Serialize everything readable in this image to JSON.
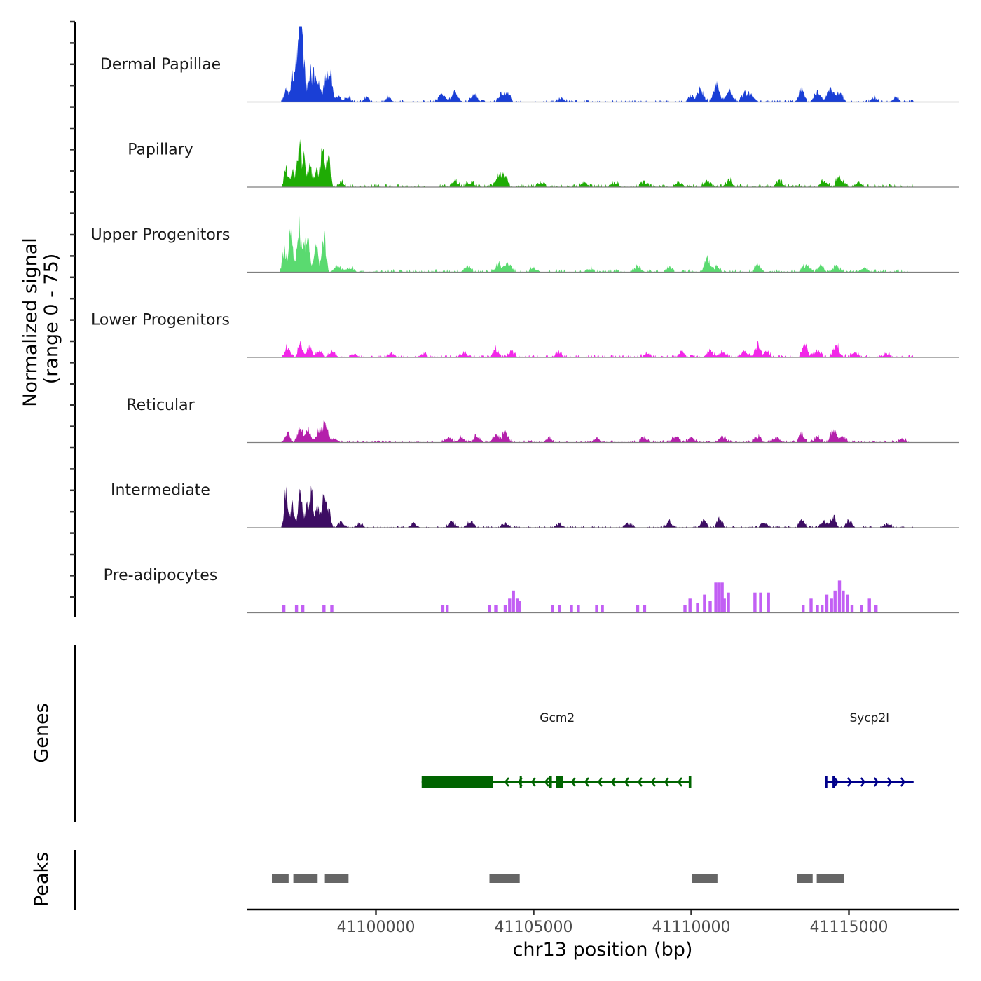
{
  "chart_data": {
    "type": "area",
    "y_axis_label_line1": "Normalized signal",
    "y_axis_label_line2": "(range 0 - 75)",
    "ylim": [
      0,
      75
    ],
    "xlabel": "chr13 position (bp)",
    "xlim": [
      41095900,
      41118500
    ],
    "x_ticks": [
      {
        "value": 41100000,
        "label": "41100000"
      },
      {
        "value": 41105000,
        "label": "41105000"
      },
      {
        "value": 41110000,
        "label": "41110000"
      },
      {
        "value": 41115000,
        "label": "41115000"
      }
    ],
    "tracks": [
      {
        "name": "Dermal Papillae",
        "color": "#1a3fd6",
        "style": "smooth",
        "range": [
          41096950,
          41117050
        ],
        "peaks": [
          [
            41097150,
            15,
            60
          ],
          [
            41097350,
            25,
            60
          ],
          [
            41097500,
            50,
            70
          ],
          [
            41097600,
            75,
            60
          ],
          [
            41097700,
            45,
            50
          ],
          [
            41097900,
            35,
            60
          ],
          [
            41098050,
            30,
            60
          ],
          [
            41098200,
            20,
            50
          ],
          [
            41098400,
            25,
            60
          ],
          [
            41098550,
            35,
            60
          ],
          [
            41098800,
            6,
            80
          ],
          [
            41099100,
            5,
            80
          ],
          [
            41099700,
            5,
            80
          ],
          [
            41100400,
            5,
            80
          ],
          [
            41102100,
            8,
            100
          ],
          [
            41102500,
            10,
            100
          ],
          [
            41103100,
            9,
            100
          ],
          [
            41104000,
            9,
            100
          ],
          [
            41104200,
            8,
            80
          ],
          [
            41105900,
            5,
            80
          ],
          [
            41110000,
            7,
            90
          ],
          [
            41110300,
            14,
            90
          ],
          [
            41110800,
            17,
            100
          ],
          [
            41111200,
            13,
            100
          ],
          [
            41111700,
            8,
            100
          ],
          [
            41111900,
            8,
            100
          ],
          [
            41113500,
            17,
            80
          ],
          [
            41114000,
            12,
            100
          ],
          [
            41114400,
            13,
            100
          ],
          [
            41114700,
            11,
            100
          ],
          [
            41115800,
            5,
            80
          ],
          [
            41116500,
            6,
            80
          ]
        ],
        "base_noise": 2.5
      },
      {
        "name": "Papillary",
        "color": "#1fac05",
        "style": "smooth",
        "range": [
          41096950,
          41117050
        ],
        "peaks": [
          [
            41097150,
            20,
            60
          ],
          [
            41097350,
            18,
            60
          ],
          [
            41097550,
            45,
            60
          ],
          [
            41097700,
            30,
            60
          ],
          [
            41097900,
            20,
            70
          ],
          [
            41098100,
            20,
            60
          ],
          [
            41098300,
            38,
            70
          ],
          [
            41098500,
            30,
            60
          ],
          [
            41098900,
            5,
            80
          ],
          [
            41102500,
            6,
            100
          ],
          [
            41103000,
            6,
            100
          ],
          [
            41103900,
            14,
            100
          ],
          [
            41104100,
            12,
            80
          ],
          [
            41105200,
            4,
            100
          ],
          [
            41106600,
            5,
            100
          ],
          [
            41107600,
            4,
            100
          ],
          [
            41108500,
            6,
            100
          ],
          [
            41109600,
            6,
            100
          ],
          [
            41110500,
            7,
            100
          ],
          [
            41111200,
            8,
            100
          ],
          [
            41112800,
            7,
            100
          ],
          [
            41114200,
            8,
            100
          ],
          [
            41114700,
            10,
            100
          ],
          [
            41115300,
            5,
            100
          ]
        ],
        "base_noise": 3.5
      },
      {
        "name": "Upper Progenitors",
        "color": "#5ada70",
        "style": "smooth",
        "range": [
          41096950,
          41117050
        ],
        "peaks": [
          [
            41097100,
            25,
            60
          ],
          [
            41097300,
            45,
            60
          ],
          [
            41097550,
            50,
            60
          ],
          [
            41097700,
            30,
            60
          ],
          [
            41097850,
            32,
            60
          ],
          [
            41098100,
            30,
            60
          ],
          [
            41098350,
            38,
            60
          ],
          [
            41098800,
            8,
            100
          ],
          [
            41099200,
            5,
            100
          ],
          [
            41102900,
            6,
            100
          ],
          [
            41103900,
            8,
            100
          ],
          [
            41104200,
            9,
            100
          ],
          [
            41105000,
            5,
            100
          ],
          [
            41106800,
            4,
            100
          ],
          [
            41108300,
            6,
            100
          ],
          [
            41109300,
            6,
            100
          ],
          [
            41110500,
            15,
            80
          ],
          [
            41110800,
            6,
            100
          ],
          [
            41112100,
            10,
            80
          ],
          [
            41113600,
            8,
            100
          ],
          [
            41114100,
            8,
            100
          ],
          [
            41114600,
            7,
            100
          ],
          [
            41115500,
            5,
            100
          ]
        ],
        "base_noise": 3.0
      },
      {
        "name": "Lower Progenitors",
        "color": "#f227e8",
        "style": "smooth",
        "range": [
          41097000,
          41117050
        ],
        "peaks": [
          [
            41097200,
            13,
            80
          ],
          [
            41097600,
            15,
            70
          ],
          [
            41097900,
            12,
            80
          ],
          [
            41098200,
            7,
            80
          ],
          [
            41098600,
            6,
            100
          ],
          [
            41099300,
            4,
            100
          ],
          [
            41100500,
            4,
            100
          ],
          [
            41101500,
            4,
            100
          ],
          [
            41102800,
            4,
            100
          ],
          [
            41103800,
            9,
            80
          ],
          [
            41104300,
            6,
            100
          ],
          [
            41105800,
            5,
            100
          ],
          [
            41108600,
            4,
            100
          ],
          [
            41109700,
            5,
            100
          ],
          [
            41110600,
            8,
            100
          ],
          [
            41111000,
            7,
            100
          ],
          [
            41111700,
            6,
            100
          ],
          [
            41112100,
            14,
            80
          ],
          [
            41112400,
            6,
            100
          ],
          [
            41113600,
            15,
            80
          ],
          [
            41114000,
            8,
            100
          ],
          [
            41114600,
            13,
            100
          ],
          [
            41115200,
            5,
            100
          ],
          [
            41116200,
            4,
            100
          ]
        ],
        "base_noise": 3.0
      },
      {
        "name": "Reticular",
        "color": "#b41fab",
        "style": "smooth",
        "range": [
          41097000,
          41117000
        ],
        "peaks": [
          [
            41097200,
            10,
            80
          ],
          [
            41097600,
            18,
            80
          ],
          [
            41097850,
            16,
            80
          ],
          [
            41098200,
            16,
            80
          ],
          [
            41098400,
            20,
            80
          ],
          [
            41098700,
            5,
            100
          ],
          [
            41102300,
            5,
            100
          ],
          [
            41102700,
            5,
            100
          ],
          [
            41103200,
            7,
            100
          ],
          [
            41103800,
            8,
            100
          ],
          [
            41104100,
            12,
            80
          ],
          [
            41105500,
            5,
            100
          ],
          [
            41107000,
            4,
            100
          ],
          [
            41108500,
            5,
            100
          ],
          [
            41109500,
            7,
            100
          ],
          [
            41110000,
            5,
            100
          ],
          [
            41111000,
            6,
            100
          ],
          [
            41112100,
            7,
            100
          ],
          [
            41112700,
            6,
            100
          ],
          [
            41113500,
            11,
            80
          ],
          [
            41114000,
            6,
            100
          ],
          [
            41114500,
            16,
            80
          ],
          [
            41114800,
            6,
            100
          ],
          [
            41116700,
            4,
            100
          ]
        ],
        "base_noise": 2.5
      },
      {
        "name": "Intermediate",
        "color": "#3d0d63",
        "style": "smooth",
        "range": [
          41097000,
          41117050
        ],
        "peaks": [
          [
            41097150,
            38,
            60
          ],
          [
            41097350,
            25,
            60
          ],
          [
            41097600,
            40,
            60
          ],
          [
            41097800,
            20,
            60
          ],
          [
            41097950,
            38,
            60
          ],
          [
            41098150,
            22,
            60
          ],
          [
            41098350,
            40,
            60
          ],
          [
            41098500,
            20,
            60
          ],
          [
            41098900,
            6,
            100
          ],
          [
            41099500,
            4,
            100
          ],
          [
            41101200,
            4,
            100
          ],
          [
            41102400,
            6,
            100
          ],
          [
            41103000,
            7,
            100
          ],
          [
            41104100,
            5,
            100
          ],
          [
            41105800,
            4,
            100
          ],
          [
            41108000,
            5,
            100
          ],
          [
            41109300,
            6,
            100
          ],
          [
            41110400,
            9,
            80
          ],
          [
            41110900,
            10,
            80
          ],
          [
            41112300,
            5,
            100
          ],
          [
            41113500,
            10,
            80
          ],
          [
            41114200,
            7,
            100
          ],
          [
            41114500,
            13,
            80
          ],
          [
            41115000,
            7,
            100
          ],
          [
            41116200,
            4,
            100
          ]
        ],
        "base_noise": 2.0
      },
      {
        "name": "Pre-adipocytes",
        "color": "#c25ff4",
        "style": "spiky",
        "range": [
          41096950,
          41117050
        ],
        "peaks": [
          [
            41097080,
            8
          ],
          [
            41097480,
            8
          ],
          [
            41097680,
            8
          ],
          [
            41098350,
            8
          ],
          [
            41098600,
            8
          ],
          [
            41102120,
            8
          ],
          [
            41102260,
            8
          ],
          [
            41103600,
            8
          ],
          [
            41103800,
            8
          ],
          [
            41104100,
            8
          ],
          [
            41104240,
            14
          ],
          [
            41104360,
            22
          ],
          [
            41104480,
            14
          ],
          [
            41104560,
            12
          ],
          [
            41105600,
            8
          ],
          [
            41105820,
            8
          ],
          [
            41106200,
            8
          ],
          [
            41106420,
            8
          ],
          [
            41107000,
            8
          ],
          [
            41107180,
            8
          ],
          [
            41108300,
            8
          ],
          [
            41108520,
            8
          ],
          [
            41109800,
            8
          ],
          [
            41109960,
            14
          ],
          [
            41110200,
            10
          ],
          [
            41110420,
            18
          ],
          [
            41110600,
            12
          ],
          [
            41110780,
            30
          ],
          [
            41110880,
            30
          ],
          [
            41110980,
            30
          ],
          [
            41111050,
            14
          ],
          [
            41111180,
            20
          ],
          [
            41112020,
            20
          ],
          [
            41112200,
            20
          ],
          [
            41112450,
            20
          ],
          [
            41113550,
            8
          ],
          [
            41113800,
            14
          ],
          [
            41114000,
            8
          ],
          [
            41114150,
            8
          ],
          [
            41114300,
            18
          ],
          [
            41114450,
            14
          ],
          [
            41114560,
            22
          ],
          [
            41114700,
            32
          ],
          [
            41114820,
            22
          ],
          [
            41114950,
            18
          ],
          [
            41115100,
            8
          ],
          [
            41115400,
            8
          ],
          [
            41115650,
            14
          ],
          [
            41115860,
            8
          ]
        ],
        "base_noise": 0
      }
    ],
    "genes": [
      {
        "name": "Gcm2",
        "strand": "-",
        "color": "#006400",
        "start": 41101450,
        "end": 41110000,
        "thick_blocks": [
          [
            41101450,
            41103700
          ],
          [
            41104560,
            41104620
          ],
          [
            41105500,
            41105580
          ],
          [
            41105700,
            41105940
          ],
          [
            41109920,
            41110000
          ]
        ],
        "label_x": 41105750
      },
      {
        "name": "Sycp2l",
        "strand": "+",
        "color": "#00008b",
        "start": 41114250,
        "end": 41117050,
        "thick_blocks": [
          [
            41114250,
            41114300
          ],
          [
            41114480,
            41114560
          ]
        ],
        "label_x": 41115650
      }
    ],
    "peaks_track": [
      [
        41096700,
        41097230
      ],
      [
        41097380,
        41098150
      ],
      [
        41098380,
        41099130
      ],
      [
        41103600,
        41104560
      ],
      [
        41110030,
        41110830
      ],
      [
        41113360,
        41113850
      ],
      [
        41113980,
        41114850
      ]
    ],
    "panel_labels": {
      "genes": "Genes",
      "peaks": "Peaks"
    }
  }
}
